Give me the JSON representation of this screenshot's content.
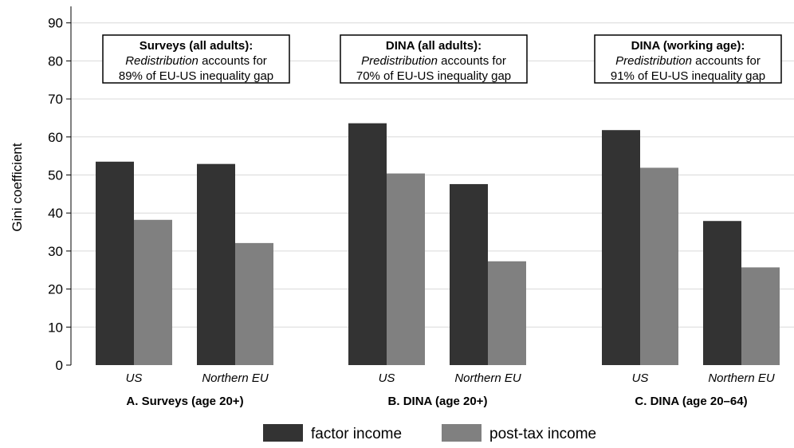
{
  "chart_data": {
    "type": "bar",
    "ylabel": "Gini coefficient",
    "ylim": [
      0,
      95
    ],
    "yticks": [
      0,
      10,
      20,
      30,
      40,
      50,
      60,
      70,
      80,
      90
    ],
    "grid": true,
    "legend_position": "bottom",
    "series": [
      {
        "name": "factor income",
        "color": "#333333"
      },
      {
        "name": "post-tax income",
        "color": "#808080"
      }
    ],
    "groups": [
      {
        "label": "A. Surveys (age 20+)",
        "categories": [
          {
            "label": "US",
            "values": [
              53.5,
              38.2
            ]
          },
          {
            "label": "Northern EU",
            "values": [
              52.9,
              32.1
            ]
          }
        ],
        "annotation": {
          "title": "Surveys (all adults):",
          "italic": "Redistribution",
          "line2_rest": " accounts for",
          "line3": "89% of EU-US inequality gap"
        }
      },
      {
        "label": "B. DINA (age 20+)",
        "categories": [
          {
            "label": "US",
            "values": [
              63.6,
              50.4
            ]
          },
          {
            "label": "Northern EU",
            "values": [
              47.6,
              27.3
            ]
          }
        ],
        "annotation": {
          "title": "DINA (all adults):",
          "italic": "Predistribution",
          "line2_rest": " accounts for",
          "line3": "70% of EU-US inequality gap"
        }
      },
      {
        "label": "C. DINA (age 20–64)",
        "categories": [
          {
            "label": "US",
            "values": [
              61.8,
              51.9
            ]
          },
          {
            "label": "Northern EU",
            "values": [
              37.9,
              25.7
            ]
          }
        ],
        "annotation": {
          "title": "DINA (working age):",
          "italic": "Predistribution",
          "line2_rest": " accounts for",
          "line3": "91% of EU-US inequality gap"
        }
      }
    ]
  }
}
